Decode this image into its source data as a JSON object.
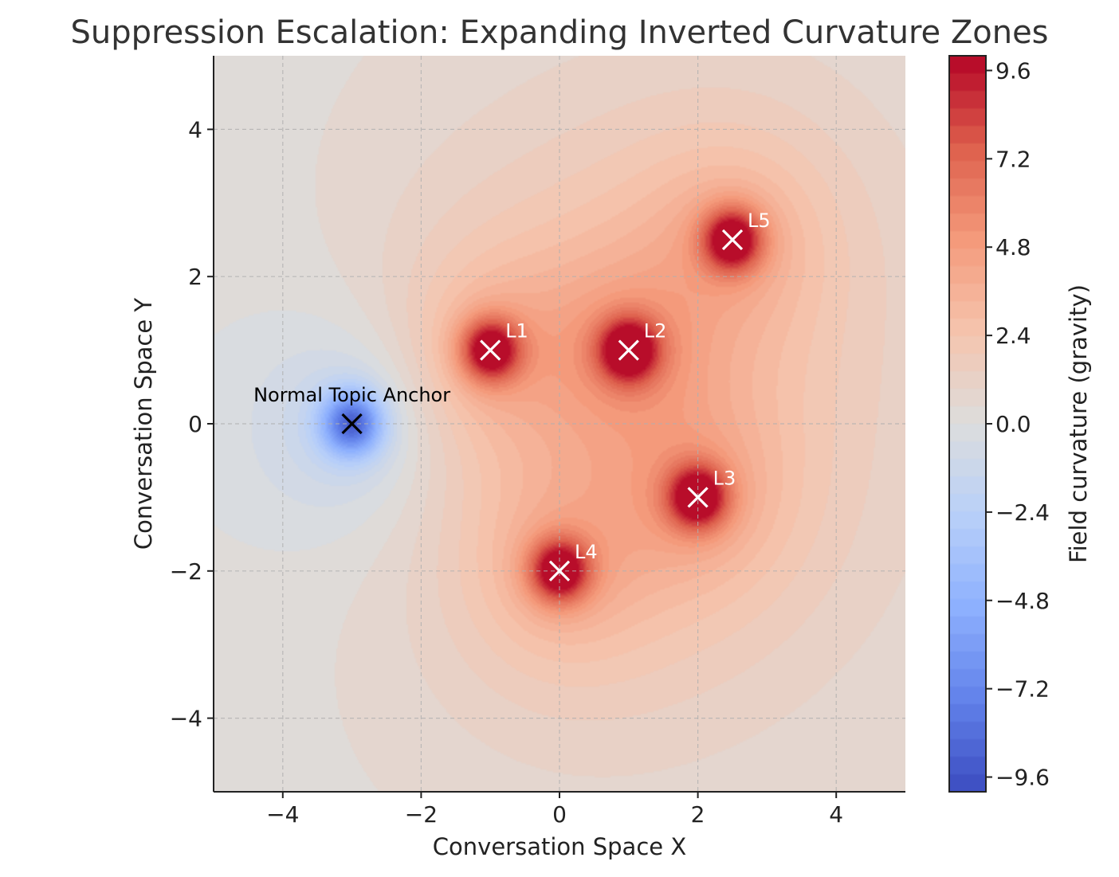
{
  "chart_data": {
    "type": "heatmap",
    "title": "Suppression Escalation: Expanding Inverted Curvature Zones",
    "xlabel": "Conversation Space X",
    "ylabel": "Conversation Space Y",
    "xlim": [
      -5,
      5
    ],
    "ylim": [
      -5,
      5
    ],
    "xticks": [
      -4,
      -2,
      0,
      2,
      4
    ],
    "yticks": [
      -4,
      -2,
      0,
      2,
      4
    ],
    "xtick_labels": [
      "−4",
      "−2",
      "0",
      "2",
      "4"
    ],
    "ytick_labels": [
      "−4",
      "−2",
      "0",
      "2",
      "4"
    ],
    "grid": true,
    "colormap": "coolwarm",
    "colorbar": {
      "label": "Field curvature (gravity)",
      "range": [
        -10,
        10
      ],
      "ticks": [
        9.6,
        7.2,
        4.8,
        2.4,
        0.0,
        -2.4,
        -4.8,
        -7.2,
        -9.6
      ],
      "tick_labels": [
        "9.6",
        "7.2",
        "4.8",
        "2.4",
        "0.0",
        "−2.4",
        "−4.8",
        "−7.2",
        "−9.6"
      ]
    },
    "sources": [
      {
        "label": "Normal Topic Anchor",
        "x": -3,
        "y": 0,
        "strength": -10,
        "marker_color": "#000000",
        "label_color": "#000000"
      },
      {
        "label": "L1",
        "x": -1,
        "y": 1,
        "strength": 10,
        "marker_color": "#ffffff",
        "label_color": "#ffffff"
      },
      {
        "label": "L2",
        "x": 1,
        "y": 1,
        "strength": 10,
        "marker_color": "#ffffff",
        "label_color": "#ffffff"
      },
      {
        "label": "L3",
        "x": 2,
        "y": -1,
        "strength": 10,
        "marker_color": "#ffffff",
        "label_color": "#ffffff"
      },
      {
        "label": "L4",
        "x": 0,
        "y": -2,
        "strength": 10,
        "marker_color": "#ffffff",
        "label_color": "#ffffff"
      },
      {
        "label": "L5",
        "x": 2.5,
        "y": 2.5,
        "strength": 10,
        "marker_color": "#ffffff",
        "label_color": "#ffffff"
      }
    ]
  }
}
